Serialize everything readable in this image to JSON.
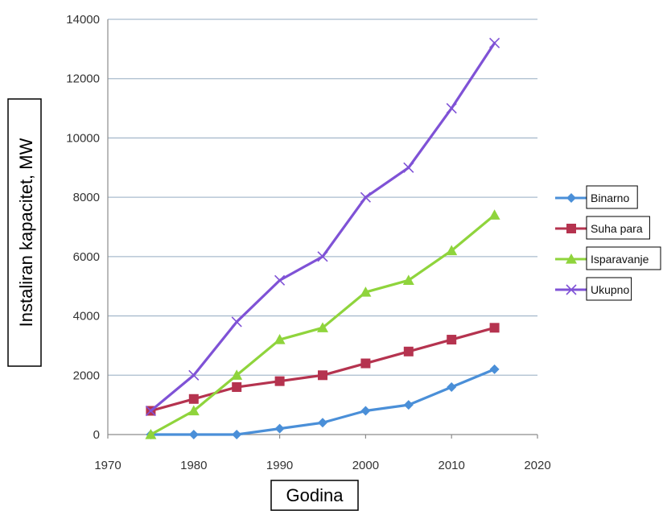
{
  "chart_data": {
    "type": "line",
    "xlabel": "Godina",
    "ylabel": "Instaliran kapacitet, MW",
    "xlim": [
      1970,
      2020
    ],
    "ylim": [
      0,
      14000
    ],
    "x_ticks": [
      1970,
      1980,
      1990,
      2000,
      2010,
      2020
    ],
    "y_ticks": [
      0,
      2000,
      4000,
      6000,
      8000,
      10000,
      12000,
      14000
    ],
    "grid": "horizontal",
    "legend_position": "right",
    "x": [
      1975,
      1980,
      1985,
      1990,
      1995,
      2000,
      2005,
      2010,
      2015
    ],
    "series": [
      {
        "name": "Binarno",
        "color": "#4a8fd8",
        "marker": "diamond",
        "values": [
          0,
          0,
          0,
          200,
          400,
          800,
          1000,
          1600,
          2200
        ]
      },
      {
        "name": "Suha para",
        "color": "#b5334f",
        "marker": "square",
        "values": [
          800,
          1200,
          1600,
          1800,
          2000,
          2400,
          2800,
          3200,
          3600
        ]
      },
      {
        "name": "Isparavanje",
        "color": "#8fd43c",
        "marker": "triangle",
        "values": [
          0,
          800,
          2000,
          3200,
          3600,
          4800,
          5200,
          6200,
          7400
        ]
      },
      {
        "name": "Ukupno",
        "color": "#7f52d6",
        "marker": "x",
        "values": [
          800,
          2000,
          3800,
          5200,
          6000,
          8000,
          9000,
          11000,
          13200
        ]
      }
    ]
  }
}
